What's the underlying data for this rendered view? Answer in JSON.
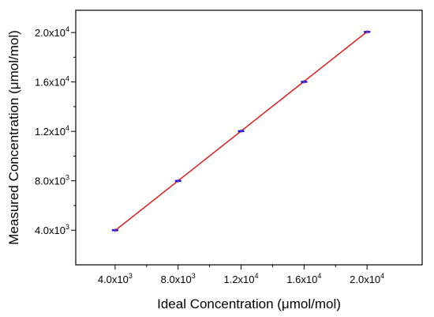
{
  "chart_data": {
    "type": "scatter",
    "title": "",
    "xlabel": "Ideal Concentration (μmol/mol)",
    "ylabel": "Measured Concentration (μmol/mol)",
    "xlim": [
      1500,
      23500
    ],
    "ylim": [
      1200,
      21800
    ],
    "x_ticks": [
      {
        "value": 4000,
        "mantissa": "4.0x10",
        "exp": "3"
      },
      {
        "value": 8000,
        "mantissa": "8.0x10",
        "exp": "3"
      },
      {
        "value": 12000,
        "mantissa": "1.2x10",
        "exp": "4"
      },
      {
        "value": 16000,
        "mantissa": "1.6x10",
        "exp": "4"
      },
      {
        "value": 20000,
        "mantissa": "2.0x10",
        "exp": "4"
      }
    ],
    "y_ticks": [
      {
        "value": 4000,
        "mantissa": "4.0x10",
        "exp": "3"
      },
      {
        "value": 8000,
        "mantissa": "8.0x10",
        "exp": "3"
      },
      {
        "value": 12000,
        "mantissa": "1.2x10",
        "exp": "4"
      },
      {
        "value": 16000,
        "mantissa": "1.6x10",
        "exp": "4"
      },
      {
        "value": 20000,
        "mantissa": "2.0x10",
        "exp": "4"
      }
    ],
    "series": [
      {
        "x": [
          4000,
          8000,
          12000,
          16000,
          20000
        ],
        "y": [
          4000,
          7990,
          12020,
          16010,
          20050
        ],
        "marker_color": "#1a1adf",
        "errorbar_color": "#e53030"
      }
    ],
    "fit_line": {
      "x": [
        4000,
        20000
      ],
      "y": [
        3980,
        20070
      ],
      "color": "#e01010"
    },
    "grid": false
  }
}
